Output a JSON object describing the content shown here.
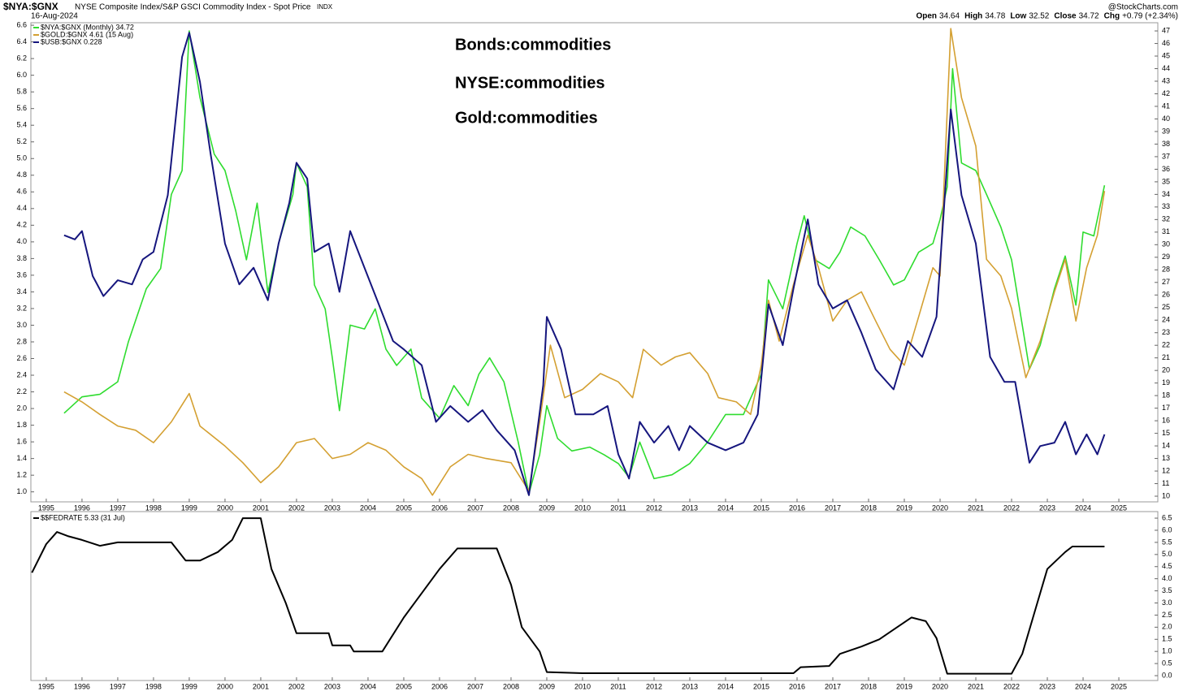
{
  "header": {
    "symbol": "$NYA:$GNX",
    "description": "NYSE Composite Index/S&P GSCI Commodity Index - Spot Price",
    "exchange": "INDX",
    "date": "16-Aug-2024",
    "source": "@StockCharts.com",
    "ohlc": [
      {
        "label": "Open",
        "value": "34.64"
      },
      {
        "label": "High",
        "value": "34.78"
      },
      {
        "label": "Low",
        "value": "32.52"
      },
      {
        "label": "Close",
        "value": "34.72"
      },
      {
        "label": "Chg",
        "value": "+0.79 (+2.34%)"
      }
    ]
  },
  "chart_data": [
    {
      "type": "line",
      "annotations": [
        {
          "text": "Bonds:commodities",
          "color": "#6464dc"
        },
        {
          "text": "NYSE:commodities",
          "color": "#2fdc2f"
        },
        {
          "text": "Gold:commodities",
          "color": "#d4a032"
        }
      ],
      "xlim": [
        1994.57,
        2026.09
      ],
      "xticks": [
        1995,
        1996,
        1997,
        1998,
        1999,
        2000,
        2001,
        2002,
        2003,
        2004,
        2005,
        2006,
        2007,
        2008,
        2009,
        2010,
        2011,
        2012,
        2013,
        2014,
        2015,
        2016,
        2017,
        2018,
        2019,
        2020,
        2021,
        2022,
        2023,
        2024,
        2025
      ],
      "ylim": [
        0.88,
        6.63
      ],
      "yticks": [
        {
          "value": 1,
          "label": "1.0"
        },
        1.2,
        1.4,
        1.6,
        1.8,
        {
          "value": 2,
          "label": "2.0"
        },
        2.2,
        2.4,
        2.6,
        2.8,
        {
          "value": 3,
          "label": "3.0"
        },
        3.2,
        3.4,
        3.6,
        3.8,
        {
          "value": 4,
          "label": "4.0"
        },
        4.2,
        4.4,
        4.6,
        4.8,
        {
          "value": 5,
          "label": "5.0"
        },
        5.2,
        5.4,
        5.6,
        5.8,
        {
          "value": 6,
          "label": "6.0"
        },
        6.2,
        6.4,
        6.6
      ],
      "y2lim": [
        9.55,
        47.65
      ],
      "y2ticks": [
        10,
        11,
        12,
        13,
        14,
        15,
        16,
        17,
        18,
        19,
        20,
        21,
        22,
        23,
        24,
        25,
        26,
        27,
        28,
        29,
        30,
        31,
        32,
        33,
        34,
        35,
        36,
        37,
        38,
        39,
        40,
        41,
        42,
        43,
        44,
        45,
        46,
        47
      ],
      "series": [
        {
          "name": "$NYA:$GNX (Monthly) 34.72",
          "color": "#2fdc2f",
          "axis": "y2",
          "x": [
            1995.5,
            1996.0,
            1996.5,
            1997.0,
            1997.3,
            1997.8,
            1998.2,
            1998.5,
            1998.8,
            1999.0,
            1999.3,
            1999.7,
            2000.0,
            2000.3,
            2000.6,
            2000.9,
            2001.2,
            2001.5,
            2001.9,
            2002.0,
            2002.3,
            2002.5,
            2002.8,
            2003.0,
            2003.2,
            2003.5,
            2003.9,
            2004.2,
            2004.5,
            2004.8,
            2005.2,
            2005.5,
            2006.0,
            2006.4,
            2006.8,
            2007.1,
            2007.4,
            2007.8,
            2008.2,
            2008.5,
            2008.8,
            2009.0,
            2009.3,
            2009.7,
            2010.2,
            2010.6,
            2011.0,
            2011.3,
            2011.6,
            2012.0,
            2012.5,
            2013.0,
            2013.5,
            2014.0,
            2014.5,
            2015.0,
            2015.2,
            2015.6,
            2016.0,
            2016.2,
            2016.5,
            2016.9,
            2017.2,
            2017.5,
            2017.9,
            2018.3,
            2018.7,
            2019.0,
            2019.4,
            2019.8,
            2020.0,
            2020.2,
            2020.35,
            2020.6,
            2021.0,
            2021.3,
            2021.7,
            2022.0,
            2022.3,
            2022.5,
            2022.8,
            2023.2,
            2023.5,
            2023.8,
            2024.0,
            2024.3,
            2024.6
          ],
          "values": [
            16.6,
            17.9,
            18.1,
            19.1,
            22.3,
            26.5,
            28.1,
            34.0,
            35.9,
            47,
            41.7,
            37.2,
            35.9,
            32.7,
            28.8,
            33.3,
            26.2,
            30.1,
            34.0,
            36.5,
            34.6,
            26.8,
            24.9,
            21.0,
            16.8,
            23.6,
            23.3,
            24.9,
            21.7,
            20.4,
            21.7,
            17.8,
            16.2,
            18.8,
            17.2,
            19.7,
            21.0,
            19.1,
            14.3,
            10.2,
            13.3,
            17.2,
            14.6,
            13.6,
            13.9,
            13.3,
            12.6,
            11.5,
            14.3,
            11.4,
            11.7,
            12.6,
            14.3,
            16.5,
            16.5,
            19.7,
            27.2,
            24.9,
            30.1,
            32.3,
            28.8,
            28.1,
            29.4,
            31.4,
            30.7,
            28.8,
            26.8,
            27.2,
            29.4,
            30.1,
            32.0,
            34.6,
            44.0,
            36.5,
            35.9,
            34.0,
            31.4,
            28.8,
            23.6,
            20.1,
            22.0,
            26.5,
            29.1,
            25.2,
            31.0,
            30.7,
            34.72
          ]
        },
        {
          "name": "$GOLD:$GNX 4.61 (15 Aug)",
          "color": "#d4a032",
          "axis": "y",
          "x": [
            1995.5,
            1996.0,
            1996.5,
            1997.0,
            1997.5,
            1998.0,
            1998.5,
            1999.0,
            1999.3,
            2000.0,
            2000.5,
            2001.0,
            2001.5,
            2002.0,
            2002.5,
            2003.0,
            2003.5,
            2004.0,
            2004.5,
            2005.0,
            2005.5,
            2005.8,
            2006.3,
            2006.8,
            2007.3,
            2008.0,
            2008.5,
            2008.8,
            2009.1,
            2009.5,
            2010.0,
            2010.5,
            2011.0,
            2011.4,
            2011.7,
            2012.2,
            2012.6,
            2013.0,
            2013.5,
            2013.8,
            2014.3,
            2014.7,
            2015.0,
            2015.2,
            2015.5,
            2015.9,
            2016.3,
            2016.6,
            2017.0,
            2017.4,
            2017.8,
            2018.2,
            2018.6,
            2019.0,
            2019.4,
            2019.8,
            2020.0,
            2020.3,
            2020.6,
            2021.0,
            2021.3,
            2021.7,
            2022.0,
            2022.4,
            2022.8,
            2023.2,
            2023.5,
            2023.8,
            2024.1,
            2024.4,
            2024.6
          ],
          "values": [
            2.2,
            2.08,
            1.93,
            1.79,
            1.74,
            1.59,
            1.84,
            2.18,
            1.79,
            1.55,
            1.35,
            1.11,
            1.3,
            1.59,
            1.64,
            1.4,
            1.45,
            1.59,
            1.5,
            1.3,
            1.16,
            0.96,
            1.3,
            1.45,
            1.4,
            1.35,
            1.01,
            1.84,
            2.76,
            2.13,
            2.23,
            2.42,
            2.32,
            2.13,
            2.71,
            2.52,
            2.62,
            2.67,
            2.42,
            2.13,
            2.08,
            1.93,
            2.52,
            3.3,
            2.81,
            3.49,
            4.08,
            3.69,
            3.05,
            3.3,
            3.4,
            3.05,
            2.71,
            2.52,
            3.1,
            3.69,
            3.59,
            6.56,
            5.73,
            5.15,
            3.79,
            3.59,
            3.2,
            2.37,
            2.81,
            3.4,
            3.79,
            3.05,
            3.69,
            4.08,
            4.61
          ]
        },
        {
          "name": "$USB:$GNX 0.228",
          "color": "#16167e",
          "axis": "y",
          "x": [
            1995.5,
            1995.8,
            1996.0,
            1996.3,
            1996.6,
            1997.0,
            1997.4,
            1997.7,
            1998.0,
            1998.4,
            1998.8,
            1999.0,
            1999.3,
            1999.6,
            2000.0,
            2000.4,
            2000.8,
            2001.2,
            2001.5,
            2001.8,
            2002.0,
            2002.3,
            2002.5,
            2002.9,
            2003.2,
            2003.5,
            2003.9,
            2004.3,
            2004.7,
            2005.0,
            2005.5,
            2005.9,
            2006.3,
            2006.8,
            2007.2,
            2007.6,
            2008.1,
            2008.5,
            2008.9,
            2009.0,
            2009.4,
            2009.8,
            2010.3,
            2010.7,
            2011.0,
            2011.3,
            2011.6,
            2012.0,
            2012.4,
            2012.7,
            2013.0,
            2013.5,
            2014.0,
            2014.5,
            2014.9,
            2015.2,
            2015.6,
            2015.9,
            2016.3,
            2016.6,
            2017.0,
            2017.4,
            2017.8,
            2018.2,
            2018.7,
            2019.1,
            2019.5,
            2019.9,
            2020.3,
            2020.6,
            2021.0,
            2021.4,
            2021.8,
            2022.1,
            2022.5,
            2022.8,
            2023.2,
            2023.5,
            2023.8,
            2024.1,
            2024.4,
            2024.6
          ],
          "values": [
            4.08,
            4.03,
            4.13,
            3.59,
            3.35,
            3.54,
            3.49,
            3.79,
            3.88,
            4.56,
            6.22,
            6.51,
            5.92,
            5.05,
            3.98,
            3.49,
            3.69,
            3.3,
            3.98,
            4.47,
            4.95,
            4.76,
            3.88,
            3.98,
            3.4,
            4.13,
            3.69,
            3.25,
            2.81,
            2.71,
            2.52,
            1.84,
            2.03,
            1.84,
            1.98,
            1.74,
            1.5,
            0.96,
            2.28,
            3.1,
            2.71,
            1.93,
            1.93,
            2.03,
            1.45,
            1.16,
            1.84,
            1.59,
            1.79,
            1.5,
            1.79,
            1.59,
            1.5,
            1.59,
            1.93,
            3.25,
            2.76,
            3.44,
            4.27,
            3.49,
            3.2,
            3.3,
            2.91,
            2.47,
            2.23,
            2.81,
            2.62,
            3.1,
            5.59,
            4.56,
            3.98,
            2.62,
            2.32,
            2.32,
            1.35,
            1.55,
            1.59,
            1.84,
            1.45,
            1.69,
            1.45,
            1.69
          ]
        }
      ]
    },
    {
      "type": "line",
      "xlim": [
        1994.57,
        2026.09
      ],
      "xticks": [
        1995,
        1996,
        1997,
        1998,
        1999,
        2000,
        2001,
        2002,
        2003,
        2004,
        2005,
        2006,
        2007,
        2008,
        2009,
        2010,
        2011,
        2012,
        2013,
        2014,
        2015,
        2016,
        2017,
        2018,
        2019,
        2020,
        2021,
        2022,
        2023,
        2024,
        2025
      ],
      "ylim": [
        -0.2,
        6.77
      ],
      "yticks": [
        {
          "value": 0,
          "label": "0.0"
        },
        0.5,
        {
          "value": 1,
          "label": "1.0"
        },
        1.5,
        {
          "value": 2,
          "label": "2.0"
        },
        2.5,
        {
          "value": 3,
          "label": "3.0"
        },
        3.5,
        {
          "value": 4,
          "label": "4.0"
        },
        4.5,
        {
          "value": 5,
          "label": "5.0"
        },
        5.5,
        {
          "value": 6,
          "label": "6.0"
        },
        6.5
      ],
      "series": [
        {
          "name": "$$FEDRATE 5.33 (31 Jul)",
          "color": "#000000",
          "x": [
            1994.6,
            1995.0,
            1995.3,
            1995.6,
            1996.0,
            1996.5,
            1997.0,
            1998.5,
            1998.9,
            1999.3,
            1999.8,
            2000.2,
            2000.5,
            2001.0,
            2001.3,
            2001.7,
            2002.0,
            2002.9,
            2003.0,
            2003.5,
            2003.6,
            2004.4,
            2005.0,
            2006.0,
            2006.5,
            2007.6,
            2008.0,
            2008.3,
            2008.8,
            2009.0,
            2010.0,
            2011.0,
            2012.0,
            2015.9,
            2016.1,
            2016.9,
            2017.2,
            2017.8,
            2018.3,
            2018.7,
            2019.2,
            2019.6,
            2019.9,
            2020.2,
            2021.0,
            2022.0,
            2022.3,
            2022.6,
            2023.0,
            2023.5,
            2023.7,
            2024.6
          ],
          "values": [
            4.25,
            5.43,
            5.93,
            5.76,
            5.6,
            5.36,
            5.5,
            5.5,
            4.75,
            4.75,
            5.1,
            5.6,
            6.5,
            6.5,
            4.4,
            3.0,
            1.75,
            1.75,
            1.25,
            1.25,
            1.0,
            1.0,
            2.4,
            4.4,
            5.25,
            5.25,
            3.75,
            2.0,
            1.0,
            0.15,
            0.1,
            0.1,
            0.1,
            0.1,
            0.35,
            0.4,
            0.9,
            1.2,
            1.5,
            1.9,
            2.4,
            2.25,
            1.55,
            0.08,
            0.08,
            0.08,
            0.9,
            2.4,
            4.4,
            5.1,
            5.33,
            5.33
          ]
        }
      ]
    }
  ]
}
